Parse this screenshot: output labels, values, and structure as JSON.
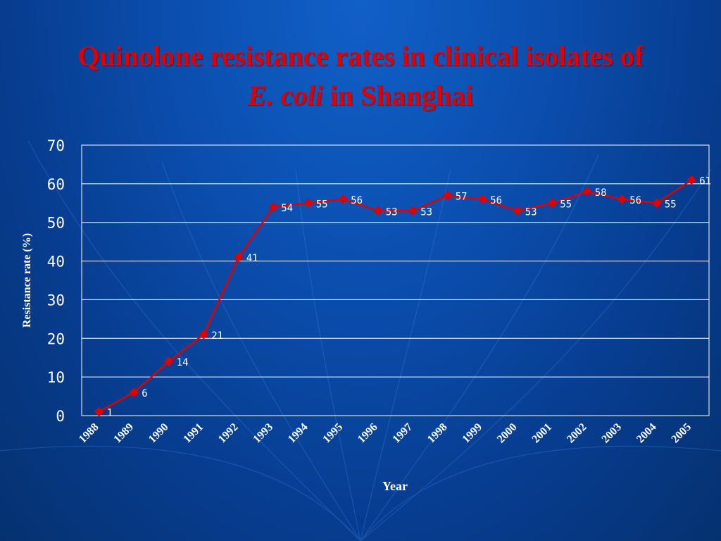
{
  "colors": {
    "background": "#0b4fb0",
    "title": "#e00000",
    "series": "#e00000",
    "axis_text": "#ffffff",
    "grid": "#ffffff"
  },
  "title": {
    "line1": "Quinolone resistance rates in clinical isolates of",
    "line2_italic": "E. coli",
    "line2_rest": " in Shanghai"
  },
  "chart_data": {
    "type": "line",
    "title": "Quinolone resistance rates in clinical isolates of E. coli in Shanghai",
    "xlabel": "Year",
    "ylabel": "Resistance rate (%)",
    "categories": [
      "1988",
      "1989",
      "1990",
      "1991",
      "1992",
      "1993",
      "1994",
      "1995",
      "1996",
      "1997",
      "1998",
      "1999",
      "2000",
      "2001",
      "2002",
      "2003",
      "2004",
      "2005"
    ],
    "values": [
      1,
      6,
      14,
      21,
      41,
      54,
      55,
      56,
      53,
      53,
      57,
      56,
      53,
      55,
      58,
      56,
      55,
      61
    ],
    "ylim": [
      0,
      70
    ],
    "yticks": [
      0,
      10,
      20,
      30,
      40,
      50,
      60,
      70
    ],
    "grid": true,
    "data_labels": true,
    "marker": "diamond"
  }
}
